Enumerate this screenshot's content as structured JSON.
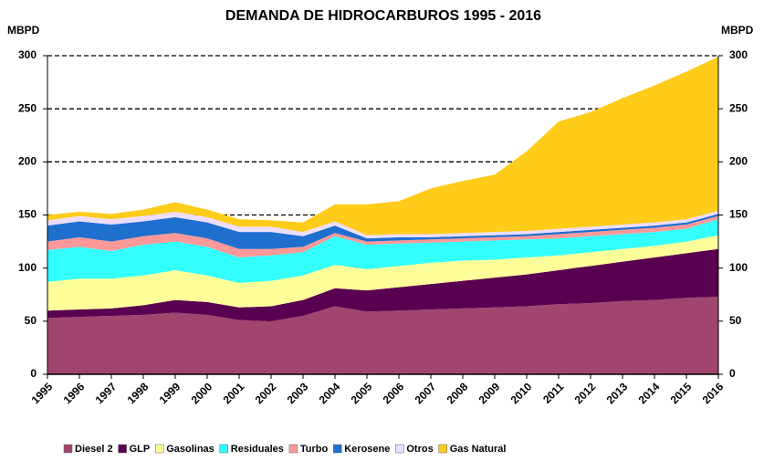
{
  "chart_data": {
    "type": "stacked_area",
    "title": "DEMANDA DE HIDROCARBUROS  1995 - 2016",
    "y_label": "MBPD",
    "y2_label": "MBPD",
    "categories": [
      "1995",
      "1996",
      "1997",
      "1998",
      "1999",
      "2000",
      "2001",
      "2002",
      "2003",
      "2004",
      "2005",
      "2006",
      "2007",
      "2008",
      "2009",
      "2010",
      "2011",
      "2012",
      "2013",
      "2014",
      "2015",
      "2016"
    ],
    "series": [
      {
        "name": "Diesel 2",
        "color": "#a0456e",
        "values": [
          53,
          54,
          55,
          56,
          58,
          56,
          51,
          50,
          55,
          64,
          59,
          60,
          61,
          62,
          63,
          64,
          66,
          67,
          69,
          70,
          72,
          73
        ]
      },
      {
        "name": "GLP",
        "color": "#5a0050",
        "values": [
          7,
          7,
          7,
          9,
          12,
          12,
          12,
          14,
          15,
          17,
          20,
          22,
          24,
          26,
          28,
          30,
          32,
          35,
          37,
          40,
          42,
          45
        ]
      },
      {
        "name": "Gasolinas",
        "color": "#ffff99",
        "values": [
          27,
          29,
          28,
          28,
          28,
          25,
          23,
          24,
          23,
          22,
          20,
          20,
          20,
          19,
          17,
          16,
          14,
          13,
          12,
          11,
          11,
          13
        ]
      },
      {
        "name": "Residuales",
        "color": "#33ffff",
        "values": [
          30,
          30,
          26,
          29,
          27,
          27,
          24,
          24,
          22,
          27,
          23,
          21,
          19,
          18,
          18,
          17,
          16,
          15,
          14,
          13,
          12,
          15
        ]
      },
      {
        "name": "Turbo",
        "color": "#ff9999",
        "values": [
          8,
          9,
          9,
          8,
          8,
          8,
          8,
          6,
          5,
          3,
          3,
          3,
          3,
          3,
          3,
          3,
          4,
          4,
          4,
          4,
          4,
          3
        ]
      },
      {
        "name": "Kerosene",
        "color": "#1f6fcf",
        "values": [
          15,
          15,
          16,
          14,
          15,
          15,
          16,
          16,
          10,
          7,
          3,
          3,
          2,
          2,
          2,
          2,
          2,
          2,
          2,
          2,
          2,
          2
        ]
      },
      {
        "name": "Otros",
        "color": "#eeddff",
        "values": [
          5,
          5,
          5,
          5,
          5,
          5,
          5,
          5,
          4,
          4,
          3,
          3,
          3,
          3,
          3,
          3,
          3,
          3,
          3,
          3,
          3,
          3
        ]
      },
      {
        "name": "Gas Natural",
        "color": "#ffcc1a",
        "values": [
          5,
          4,
          5,
          6,
          9,
          7,
          7,
          6,
          9,
          16,
          29,
          31,
          43,
          49,
          54,
          75,
          101,
          108,
          119,
          129,
          139,
          145
        ]
      }
    ],
    "ylim": [
      0,
      300
    ],
    "yticks": [
      0,
      50,
      100,
      150,
      200,
      250,
      300
    ],
    "y2lim": [
      0,
      300
    ],
    "y2ticks": [
      0,
      50,
      100,
      150,
      200,
      250,
      300
    ],
    "grid": true
  }
}
